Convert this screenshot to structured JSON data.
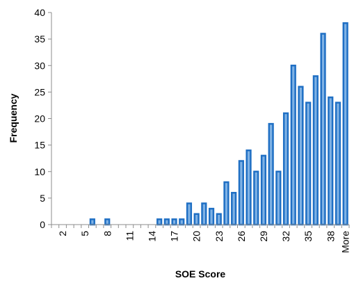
{
  "chart_data": {
    "type": "bar",
    "title": "",
    "xlabel": "SOE Score",
    "ylabel": "Frequency",
    "ylim": [
      0,
      40
    ],
    "yticks": [
      0,
      5,
      10,
      15,
      20,
      25,
      30,
      35,
      40
    ],
    "grid": false,
    "legend": "none",
    "bar_color": "#1f6fc4",
    "bar_fill": "#7fb2e5",
    "categories": [
      "1",
      "2",
      "3",
      "4",
      "5",
      "6",
      "7",
      "8",
      "9",
      "10",
      "11",
      "12",
      "13",
      "14",
      "15",
      "16",
      "17",
      "18",
      "19",
      "20",
      "21",
      "22",
      "23",
      "24",
      "25",
      "26",
      "27",
      "28",
      "29",
      "30",
      "31",
      "32",
      "33",
      "34",
      "35",
      "36",
      "37",
      "38",
      "39",
      "More"
    ],
    "values": [
      0,
      0,
      0,
      0,
      0,
      1,
      0,
      1,
      0,
      0,
      0,
      0,
      0,
      0,
      1,
      1,
      1,
      1,
      4,
      2,
      4,
      3,
      2,
      8,
      6,
      12,
      14,
      10,
      13,
      19,
      10,
      21,
      30,
      26,
      23,
      28,
      36,
      24,
      23,
      38
    ],
    "xtick_labels": [
      "2",
      "5",
      "8",
      "11",
      "14",
      "17",
      "20",
      "23",
      "26",
      "29",
      "32",
      "35",
      "38",
      "More"
    ],
    "xtick_label_categories": [
      "2",
      "5",
      "8",
      "11",
      "14",
      "17",
      "20",
      "23",
      "26",
      "29",
      "32",
      "35",
      "38",
      "More"
    ]
  }
}
